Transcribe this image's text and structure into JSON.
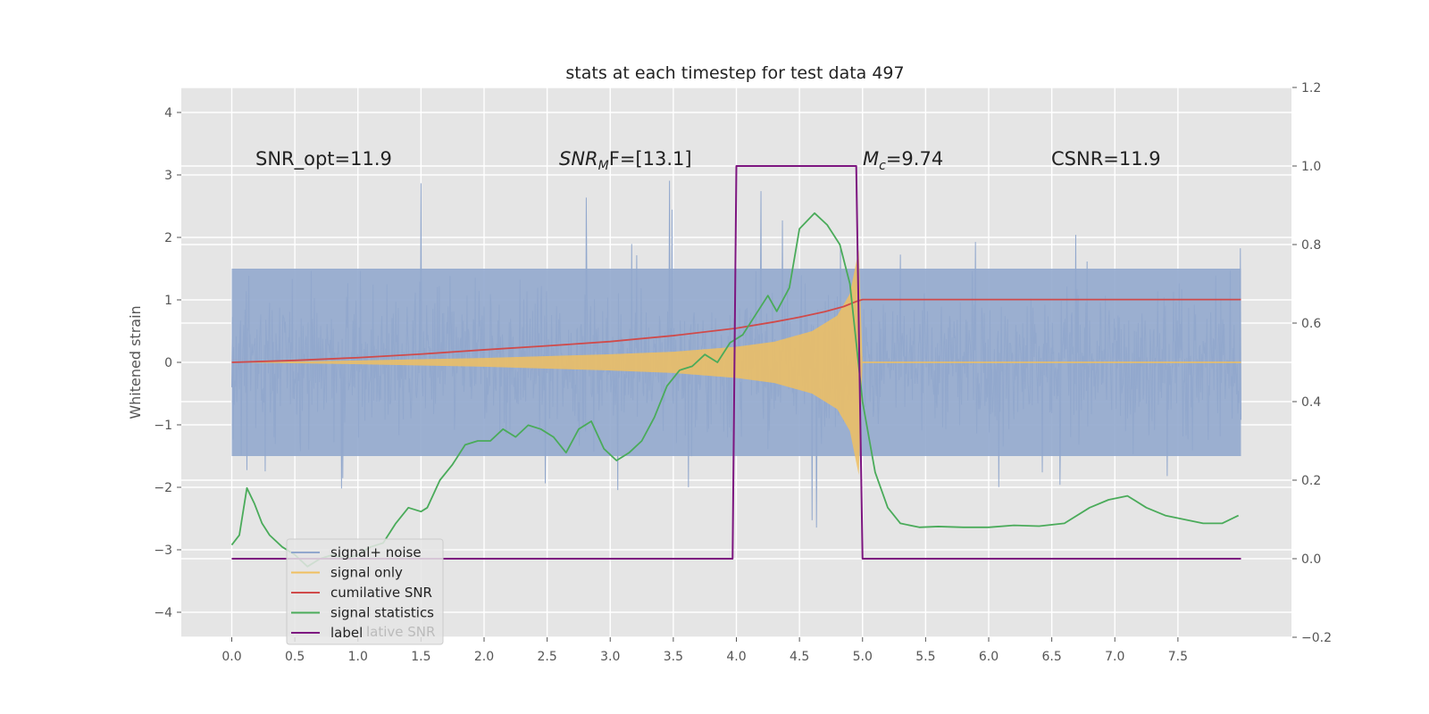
{
  "chart_data": {
    "type": "line",
    "title": "stats at each timestep for test data 497",
    "ylabel": "Whitened strain",
    "xlim": [
      -0.4,
      8.4
    ],
    "ylim": [
      -4.4,
      4.4
    ],
    "y2lim": [
      -0.2,
      1.2
    ],
    "x_ticks": [
      "0.0",
      "0.5",
      "1.0",
      "1.5",
      "2.0",
      "2.5",
      "3.0",
      "3.5",
      "4.0",
      "4.5",
      "5.0",
      "5.5",
      "6.0",
      "6.5",
      "7.0",
      "7.5"
    ],
    "y_ticks": [
      "−4",
      "−3",
      "−2",
      "−1",
      "0",
      "1",
      "2",
      "3",
      "4"
    ],
    "y2_ticks": [
      "−0.2",
      "0.0",
      "0.2",
      "0.4",
      "0.6",
      "0.8",
      "1.0",
      "1.2"
    ],
    "grid": true,
    "legend_position": "lower-left",
    "annotations": {
      "snr_opt": "SNR_opt=11.9",
      "snr_mf_main": "SNR",
      "snr_mf_sub": "M",
      "snr_mf_rest": "F=[13.1]",
      "mc_main": "M",
      "mc_sub": "c",
      "mc_rest": "=9.74",
      "csnr": "CSNR=11.9"
    },
    "legend_ghost_text": "lative SNR",
    "series": [
      {
        "name": "signal+ noise",
        "color": "#92a8cd",
        "x_range": [
          0,
          8
        ],
        "noise_band": [
          -1.5,
          1.5
        ],
        "peak_range": [
          -4.0,
          4.0
        ]
      },
      {
        "name": "signal only",
        "color": "#f0c060",
        "x_range": [
          0,
          8
        ],
        "envelope_x": [
          0.0,
          1.0,
          2.0,
          3.0,
          3.5,
          4.0,
          4.3,
          4.6,
          4.8,
          4.9,
          4.97,
          5.0
        ],
        "envelope_y": [
          0.0,
          0.03,
          0.07,
          0.13,
          0.17,
          0.25,
          0.33,
          0.5,
          0.75,
          1.1,
          1.8,
          0.0
        ]
      },
      {
        "name": "cumilative SNR",
        "color": "#d04a4a",
        "axis": "right",
        "x": [
          0.0,
          0.5,
          1.0,
          1.5,
          2.0,
          2.5,
          3.0,
          3.5,
          4.0,
          4.3,
          4.5,
          4.7,
          4.85,
          4.95,
          5.0,
          5.5,
          6.0,
          6.5,
          7.0,
          7.5,
          8.0
        ],
        "y": [
          0.5,
          0.505,
          0.512,
          0.521,
          0.532,
          0.542,
          0.553,
          0.568,
          0.587,
          0.603,
          0.615,
          0.629,
          0.642,
          0.655,
          0.66,
          0.66,
          0.66,
          0.66,
          0.66,
          0.66,
          0.66
        ]
      },
      {
        "name": "signal statistics",
        "color": "#4aab5a",
        "axis": "right",
        "x": [
          0.0,
          0.06,
          0.12,
          0.18,
          0.24,
          0.3,
          0.4,
          0.5,
          0.6,
          0.7,
          0.8,
          0.9,
          1.0,
          1.1,
          1.2,
          1.3,
          1.4,
          1.5,
          1.55,
          1.65,
          1.75,
          1.85,
          1.95,
          2.05,
          2.15,
          2.25,
          2.35,
          2.45,
          2.55,
          2.65,
          2.75,
          2.85,
          2.95,
          3.05,
          3.15,
          3.25,
          3.35,
          3.45,
          3.55,
          3.65,
          3.75,
          3.85,
          3.95,
          4.05,
          4.15,
          4.25,
          4.32,
          4.42,
          4.5,
          4.62,
          4.72,
          4.82,
          4.9,
          5.0,
          5.1,
          5.2,
          5.3,
          5.45,
          5.6,
          5.8,
          6.0,
          6.2,
          6.4,
          6.6,
          6.8,
          6.95,
          7.1,
          7.25,
          7.4,
          7.55,
          7.7,
          7.85,
          7.98
        ],
        "y": [
          0.035,
          0.06,
          0.18,
          0.14,
          0.09,
          0.06,
          0.03,
          0.01,
          -0.02,
          0.0,
          0.01,
          0.0,
          0.01,
          0.03,
          0.04,
          0.09,
          0.13,
          0.12,
          0.13,
          0.2,
          0.24,
          0.29,
          0.3,
          0.3,
          0.33,
          0.31,
          0.34,
          0.33,
          0.31,
          0.27,
          0.33,
          0.35,
          0.28,
          0.25,
          0.27,
          0.3,
          0.36,
          0.44,
          0.48,
          0.49,
          0.52,
          0.5,
          0.55,
          0.57,
          0.62,
          0.67,
          0.63,
          0.69,
          0.84,
          0.88,
          0.85,
          0.8,
          0.7,
          0.4,
          0.22,
          0.13,
          0.09,
          0.08,
          0.082,
          0.08,
          0.08,
          0.085,
          0.083,
          0.09,
          0.13,
          0.15,
          0.16,
          0.13,
          0.11,
          0.1,
          0.09,
          0.09,
          0.11
        ]
      },
      {
        "name": "label",
        "color": "#7d1680",
        "axis": "right",
        "x": [
          0.0,
          3.97,
          4.0,
          4.95,
          5.0,
          8.0
        ],
        "y": [
          0.0,
          0.0,
          1.0,
          1.0,
          0.0,
          0.0
        ]
      }
    ]
  }
}
